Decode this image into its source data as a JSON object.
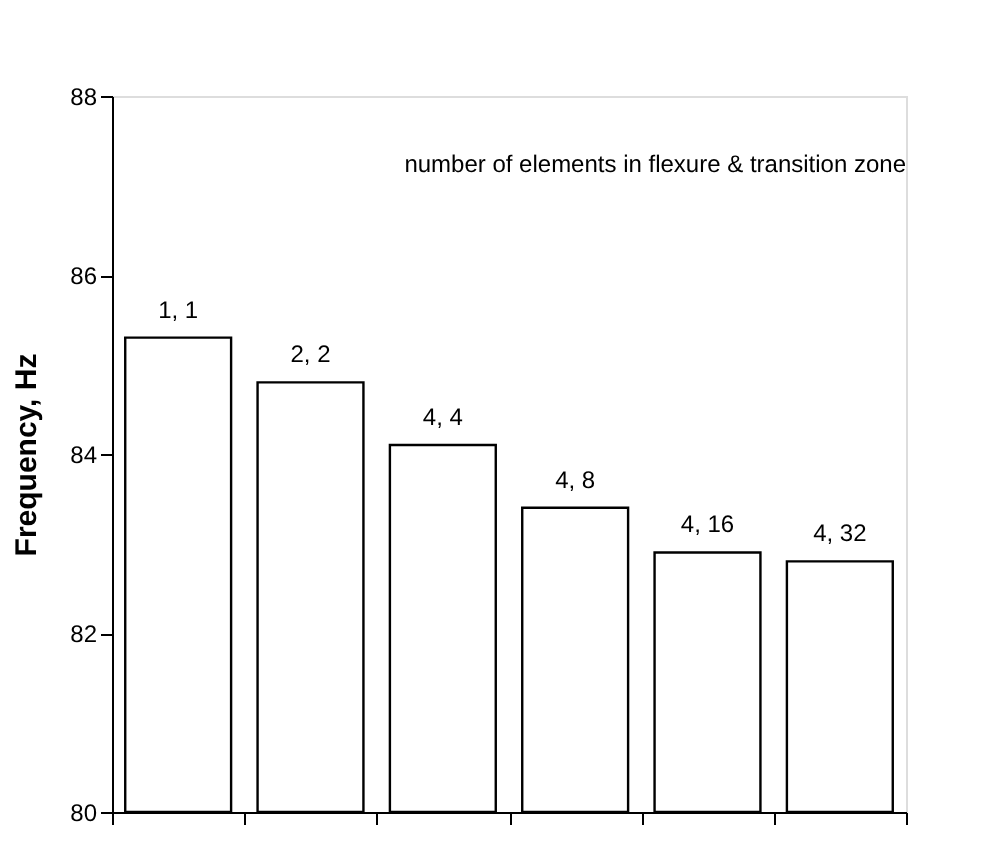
{
  "chart_data": {
    "type": "bar",
    "ylabel": "Frequency, Hz",
    "categories": [
      "1, 1",
      "2, 2",
      "4, 4",
      "4, 8",
      "4, 16",
      "4, 32"
    ],
    "values": [
      85.3,
      84.8,
      84.1,
      83.4,
      82.9,
      82.8
    ],
    "color": "#ffffff",
    "ylim": [
      80,
      88
    ],
    "yticks": [
      80,
      82,
      84,
      86,
      88
    ],
    "annotations": [
      "number of elements in flexure & transition zone"
    ],
    "grid": false
  }
}
